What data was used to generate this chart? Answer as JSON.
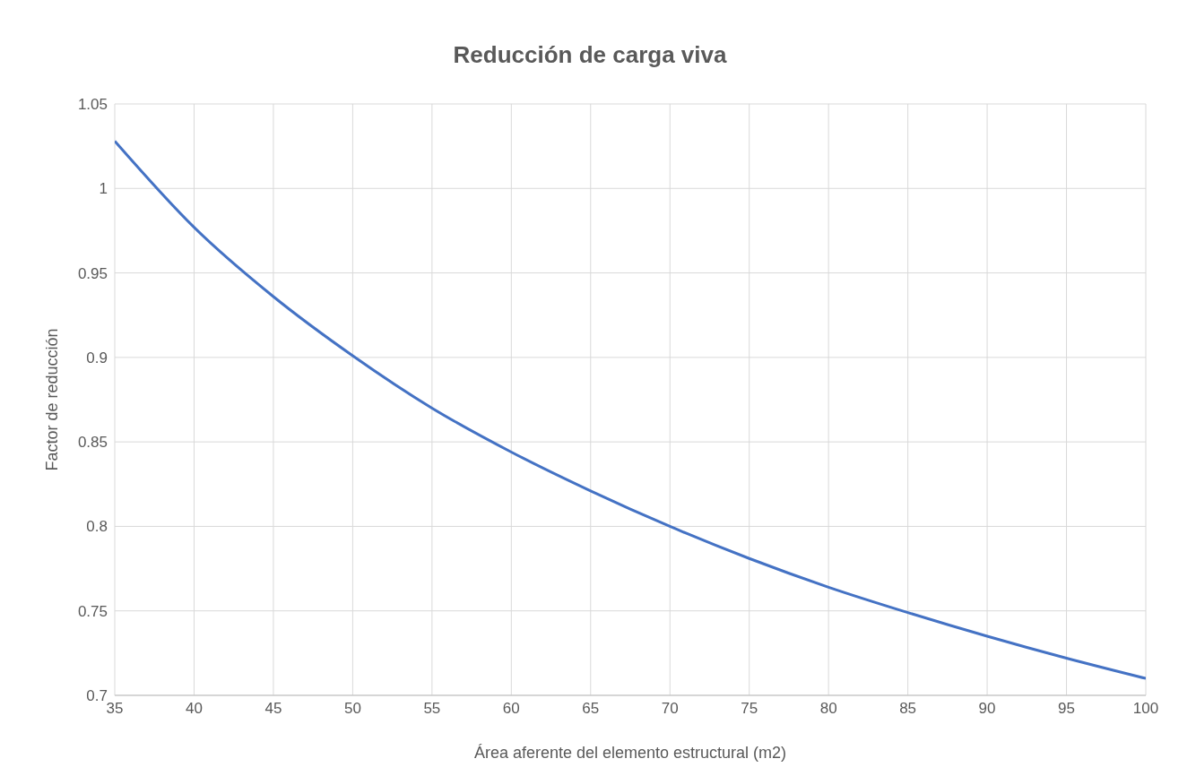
{
  "chart_data": {
    "type": "line",
    "title": "Reducción de carga viva",
    "xlabel": "Área aferente del elemento estructural (m2)",
    "ylabel": "Factor de reducción",
    "x": [
      35,
      40,
      45,
      50,
      55,
      60,
      65,
      70,
      75,
      80,
      85,
      90,
      95,
      100
    ],
    "series": [
      {
        "color": "#4472c4",
        "values": [
          1.028,
          0.977,
          0.936,
          0.901,
          0.87,
          0.844,
          0.821,
          0.8,
          0.781,
          0.764,
          0.749,
          0.735,
          0.722,
          0.71
        ]
      }
    ],
    "xlim": [
      35,
      100
    ],
    "xticks": [
      35,
      40,
      45,
      50,
      55,
      60,
      65,
      70,
      75,
      80,
      85,
      90,
      95,
      100
    ],
    "ylim": [
      0.7,
      1.05
    ],
    "yticks": [
      0.7,
      0.75,
      0.8,
      0.85,
      0.9,
      0.95,
      1,
      1.05
    ],
    "grid": true,
    "legend": false,
    "marker": "none",
    "line_style": "solid"
  }
}
